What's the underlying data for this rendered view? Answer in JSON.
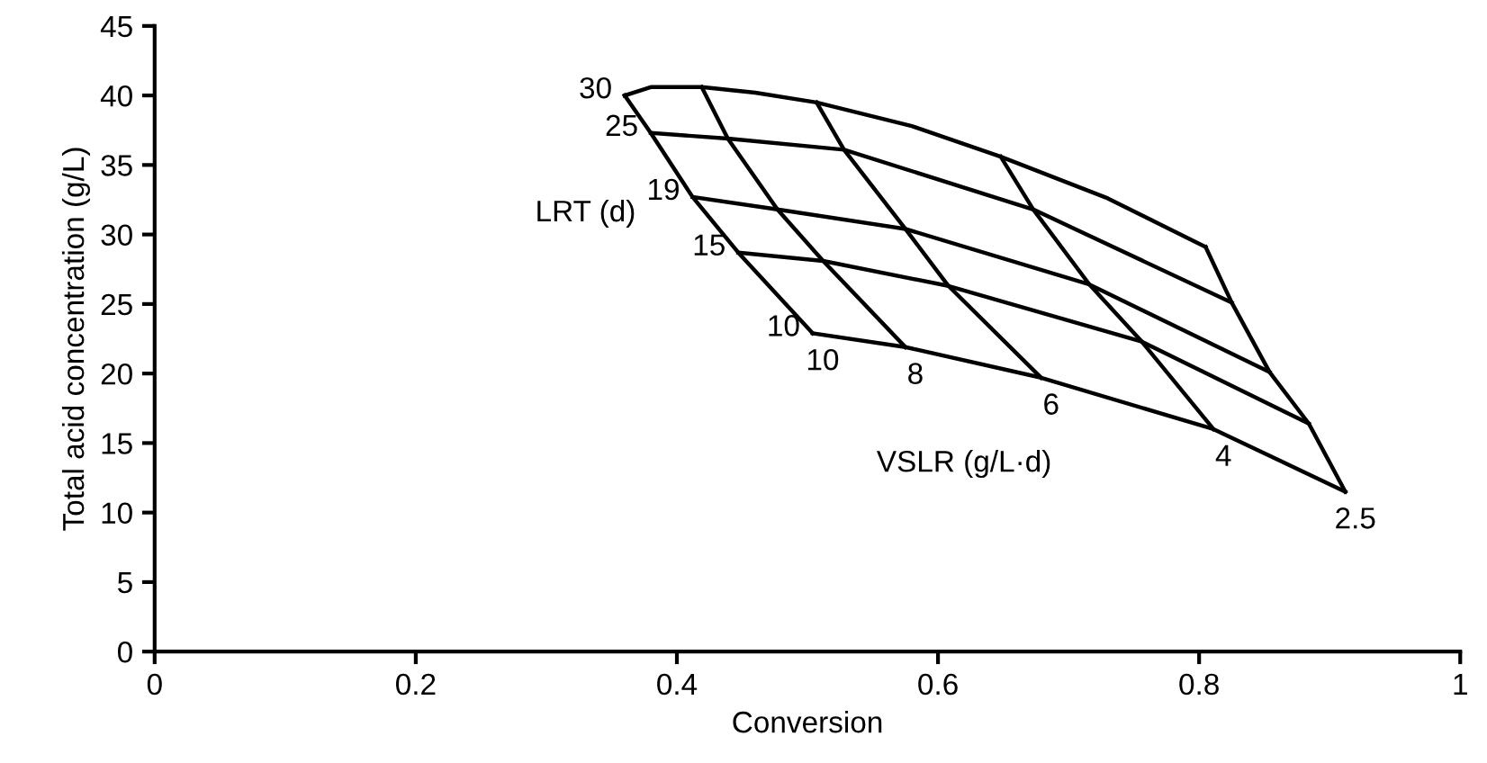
{
  "chart_data": {
    "type": "line",
    "xlabel": "Conversion",
    "ylabel": "Total acid concentration (g/L)",
    "xlim": [
      0,
      1
    ],
    "ylim": [
      0,
      45
    ],
    "xticks": [
      0,
      0.2,
      0.4,
      0.6,
      0.8,
      1
    ],
    "yticks": [
      0,
      5,
      10,
      15,
      20,
      25,
      30,
      35,
      40,
      45
    ],
    "grid": false,
    "marker": "none",
    "line_style": "solid",
    "series": [
      {
        "color": "#000000",
        "x": [
          0.36,
          0.38,
          0.419,
          0.46,
          0.507,
          0.58,
          0.648,
          0.73,
          0.805
        ],
        "values": [
          40.0,
          40.6,
          40.6,
          40.2,
          39.5,
          37.8,
          35.6,
          32.6,
          29.1
        ]
      },
      {
        "color": "#000000",
        "x": [
          0.38,
          0.439,
          0.528,
          0.673,
          0.825
        ],
        "values": [
          37.3,
          36.9,
          36.1,
          31.8,
          25.1
        ]
      },
      {
        "color": "#000000",
        "x": [
          0.412,
          0.477,
          0.575,
          0.716,
          0.854
        ],
        "values": [
          32.7,
          31.8,
          30.4,
          26.4,
          20.1
        ]
      },
      {
        "color": "#000000",
        "x": [
          0.447,
          0.512,
          0.608,
          0.756,
          0.884
        ],
        "values": [
          28.7,
          28.1,
          26.3,
          22.3,
          16.4
        ]
      },
      {
        "color": "#000000",
        "x": [
          0.504,
          0.575,
          0.679,
          0.811,
          0.912
        ],
        "values": [
          22.9,
          21.9,
          19.7,
          16.0,
          11.5
        ]
      },
      {
        "color": "#000000",
        "x": [
          0.36,
          0.38,
          0.412,
          0.447,
          0.504
        ],
        "values": [
          40.0,
          37.3,
          32.7,
          28.7,
          22.9
        ]
      },
      {
        "color": "#000000",
        "x": [
          0.419,
          0.439,
          0.477,
          0.512,
          0.575
        ],
        "values": [
          40.6,
          36.9,
          31.8,
          28.1,
          21.9
        ]
      },
      {
        "color": "#000000",
        "x": [
          0.507,
          0.528,
          0.575,
          0.608,
          0.679
        ],
        "values": [
          39.5,
          36.1,
          30.4,
          26.3,
          19.7
        ]
      },
      {
        "color": "#000000",
        "x": [
          0.648,
          0.673,
          0.716,
          0.756,
          0.811
        ],
        "values": [
          35.6,
          31.8,
          26.4,
          22.3,
          16.0
        ]
      },
      {
        "color": "#000000",
        "x": [
          0.805,
          0.825,
          0.854,
          0.884,
          0.912
        ],
        "values": [
          29.1,
          25.1,
          20.1,
          16.4,
          11.5
        ]
      }
    ],
    "annotations": [
      {
        "text": "30",
        "x": 0.36,
        "y": 40.0
      },
      {
        "text": "25",
        "x": 0.38,
        "y": 37.3
      },
      {
        "text": "19",
        "x": 0.412,
        "y": 32.7
      },
      {
        "text": "15",
        "x": 0.447,
        "y": 28.7
      },
      {
        "text": "10",
        "x": 0.504,
        "y": 22.9
      },
      {
        "text": "10",
        "x": 0.504,
        "y": 22.9
      },
      {
        "text": "8",
        "x": 0.575,
        "y": 21.9
      },
      {
        "text": "6",
        "x": 0.679,
        "y": 19.7
      },
      {
        "text": "4",
        "x": 0.811,
        "y": 16.0
      },
      {
        "text": "2.5",
        "x": 0.912,
        "y": 11.5
      },
      "LRT (d)",
      "VSLR (g/L·d)"
    ]
  }
}
